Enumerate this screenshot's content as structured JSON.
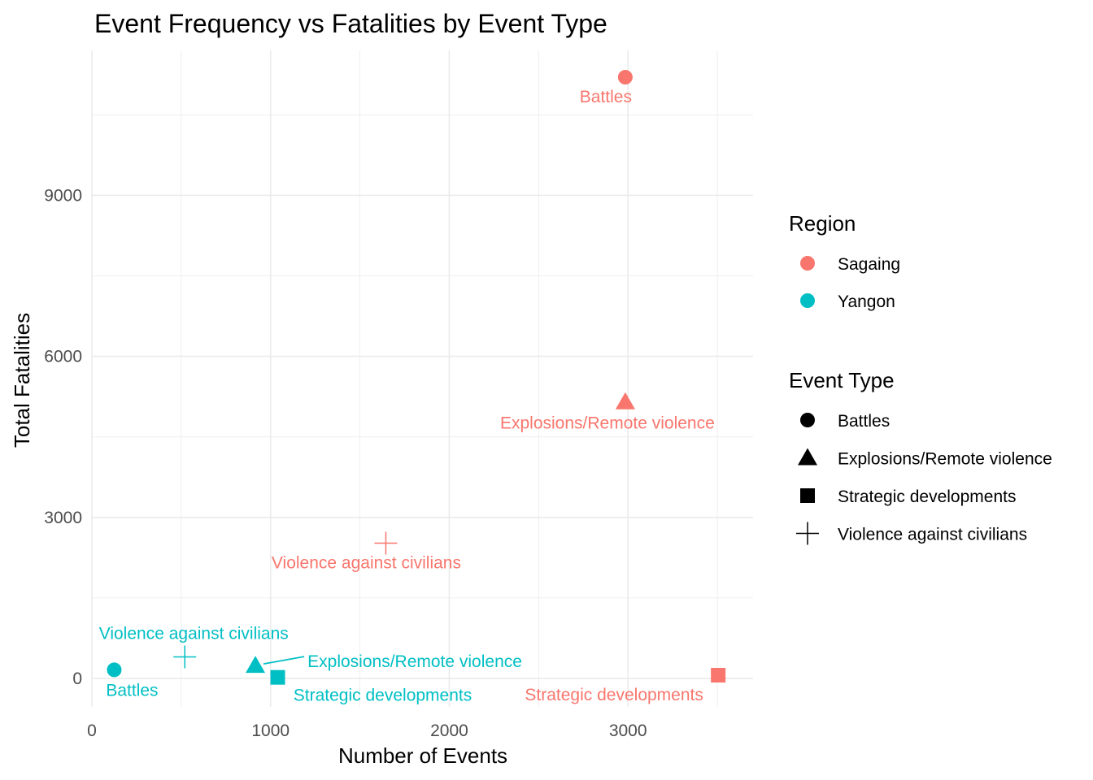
{
  "chart_data": {
    "type": "scatter",
    "title": "Event Frequency vs Fatalities by Event Type",
    "xlabel": "Number of Events",
    "ylabel": "Total Fatalities",
    "xlim": [
      0,
      3700
    ],
    "ylim": [
      -530,
      11700
    ],
    "xticks": [
      0,
      1000,
      2000,
      3000
    ],
    "xtick_labels": [
      "0",
      "1000",
      "2000",
      "3000"
    ],
    "yticks": [
      0,
      3000,
      6000,
      9000
    ],
    "ytick_labels": [
      "0",
      "3000",
      "6000",
      "9000"
    ],
    "grid": true,
    "legend_position": "right",
    "legend": {
      "region_title": "Region",
      "regions": [
        {
          "name": "Sagaing",
          "color": "#F8766D"
        },
        {
          "name": "Yangon",
          "color": "#00BFC4"
        }
      ],
      "event_type_title": "Event Type",
      "event_types": [
        {
          "name": "Battles",
          "shape": "circle"
        },
        {
          "name": "Explosions/Remote violence",
          "shape": "triangle"
        },
        {
          "name": "Strategic developments",
          "shape": "square"
        },
        {
          "name": "Violence against civilians",
          "shape": "plus"
        }
      ]
    },
    "points": [
      {
        "region": "Sagaing",
        "event_type": "Battles",
        "x": 2985,
        "y": 11200,
        "label": "Battles"
      },
      {
        "region": "Sagaing",
        "event_type": "Explosions/Remote violence",
        "x": 2985,
        "y": 5150,
        "label": "Explosions/Remote violence"
      },
      {
        "region": "Sagaing",
        "event_type": "Violence against civilians",
        "x": 1645,
        "y": 2520,
        "label": "Violence against civilians"
      },
      {
        "region": "Sagaing",
        "event_type": "Strategic developments",
        "x": 3505,
        "y": 60,
        "label": "Strategic developments"
      },
      {
        "region": "Yangon",
        "event_type": "Battles",
        "x": 125,
        "y": 160,
        "label": "Battles"
      },
      {
        "region": "Yangon",
        "event_type": "Violence against civilians",
        "x": 520,
        "y": 400,
        "label": "Violence against civilians"
      },
      {
        "region": "Yangon",
        "event_type": "Explosions/Remote violence",
        "x": 915,
        "y": 240,
        "label": "Explosions/Remote violence"
      },
      {
        "region": "Yangon",
        "event_type": "Strategic developments",
        "x": 1040,
        "y": 20,
        "label": "Strategic developments"
      }
    ]
  }
}
